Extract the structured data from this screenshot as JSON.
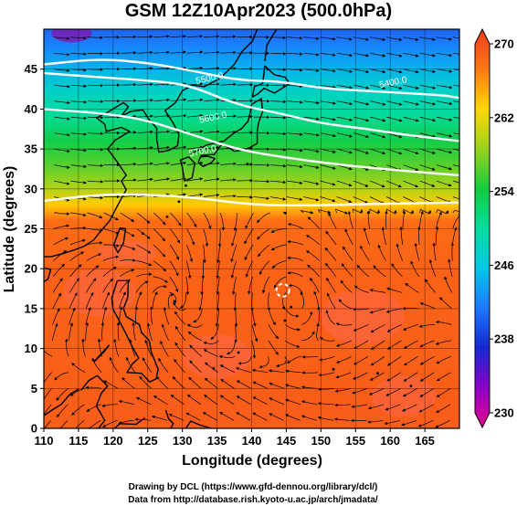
{
  "title": "GSM 12Z10Apr2023 (500.0hPa)",
  "credits": {
    "line1": "Drawing by DCL (https://www.gfd-dennou.org/library/dcl/)",
    "line2": "Data from http://database.rish.kyoto-u.ac.jp/arch/jmadata/"
  },
  "chart_data": {
    "type": "heatmap",
    "title": "GSM 12Z10Apr2023 (500.0hPa)",
    "xlabel": "Longitude (degrees)",
    "ylabel": "Latitude (degrees)",
    "xlim": [
      110,
      170
    ],
    "ylim": [
      0,
      50
    ],
    "x_ticks": [
      110,
      115,
      120,
      125,
      130,
      135,
      140,
      145,
      150,
      155,
      160,
      165
    ],
    "y_ticks": [
      0,
      5,
      10,
      15,
      20,
      25,
      30,
      35,
      40,
      45
    ],
    "grid": true,
    "colorbar": {
      "range": [
        230,
        270
      ],
      "ticks": [
        230,
        238,
        246,
        254,
        262,
        270
      ],
      "stops": [
        {
          "value": 230,
          "color": "#e6008c"
        },
        {
          "value": 234,
          "color": "#8c00c8"
        },
        {
          "value": 238,
          "color": "#1428d2"
        },
        {
          "value": 242,
          "color": "#1e78ff"
        },
        {
          "value": 246,
          "color": "#00c8e6"
        },
        {
          "value": 250,
          "color": "#00dca0"
        },
        {
          "value": 254,
          "color": "#14cc3c"
        },
        {
          "value": 258,
          "color": "#9ad21e"
        },
        {
          "value": 262,
          "color": "#ffd700"
        },
        {
          "value": 266,
          "color": "#ff7814"
        },
        {
          "value": 270,
          "color": "#f03c1e"
        }
      ]
    },
    "temperature_profile": [
      {
        "lat": 0,
        "value": 267.8
      },
      {
        "lat": 10,
        "value": 267.6
      },
      {
        "lat": 20,
        "value": 267.4
      },
      {
        "lat": 26,
        "value": 266.8
      },
      {
        "lat": 28,
        "value": 262.5
      },
      {
        "lat": 30,
        "value": 259
      },
      {
        "lat": 33,
        "value": 256
      },
      {
        "lat": 36,
        "value": 253.5
      },
      {
        "lat": 39,
        "value": 250.5
      },
      {
        "lat": 42,
        "value": 248
      },
      {
        "lat": 45,
        "value": 245
      },
      {
        "lat": 48,
        "value": 242.5
      },
      {
        "lat": 50,
        "value": 241
      }
    ],
    "contours": [
      {
        "label": "5400.0",
        "points": [
          [
            110,
            45.6
          ],
          [
            118,
            46.3
          ],
          [
            125,
            45.8
          ],
          [
            132,
            44.7
          ],
          [
            138,
            43.6
          ],
          [
            144,
            43.5
          ],
          [
            150,
            42.6
          ],
          [
            156,
            42.3
          ],
          [
            162,
            42.0
          ],
          [
            168,
            41.7
          ],
          [
            170,
            41.4
          ]
        ]
      },
      {
        "label": "5500.0",
        "points": [
          [
            110,
            44.5
          ],
          [
            118,
            44.0
          ],
          [
            126,
            43.5
          ],
          [
            131,
            43.0
          ],
          [
            138,
            40.5
          ],
          [
            144,
            39.5
          ],
          [
            150,
            38.2
          ],
          [
            156,
            37.6
          ],
          [
            162,
            36.8
          ],
          [
            170,
            36.0
          ]
        ]
      },
      {
        "label": "5600.0",
        "points": [
          [
            110,
            40.0
          ],
          [
            118,
            39.5
          ],
          [
            124,
            38.8
          ],
          [
            130,
            37.2
          ],
          [
            138,
            34.9
          ],
          [
            145,
            33.9
          ],
          [
            152,
            33.1
          ],
          [
            160,
            32.4
          ],
          [
            170,
            31.7
          ]
        ]
      },
      {
        "label": "5700.0",
        "points": [
          [
            110,
            28.5
          ],
          [
            118,
            29.3
          ],
          [
            125,
            29.3
          ],
          [
            132,
            28.9
          ],
          [
            140,
            28.0
          ],
          [
            148,
            27.9
          ],
          [
            156,
            28.1
          ],
          [
            164,
            28.2
          ],
          [
            170,
            28.3
          ]
        ]
      }
    ],
    "contour_label_anchors": [
      {
        "text": "5500.0",
        "lon": 134.0,
        "lat": 43.5
      },
      {
        "text": "5400.0",
        "lon": 160.5,
        "lat": 43.0
      },
      {
        "text": "5600.0",
        "lon": 134.5,
        "lat": 38.6
      },
      {
        "text": "5700.0",
        "lon": 133.0,
        "lat": 34.4
      }
    ],
    "low_center": {
      "lon": 144.5,
      "lat": 17.3
    }
  }
}
